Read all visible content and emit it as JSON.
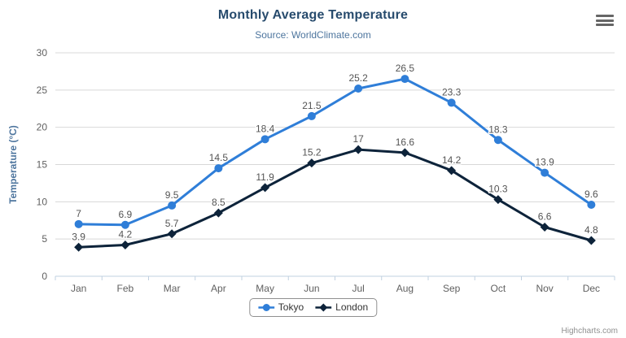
{
  "chart_data": {
    "type": "line",
    "title": "Monthly Average Temperature",
    "subtitle": "Source: WorldClimate.com",
    "categories": [
      "Jan",
      "Feb",
      "Mar",
      "Apr",
      "May",
      "Jun",
      "Jul",
      "Aug",
      "Sep",
      "Oct",
      "Nov",
      "Dec"
    ],
    "series": [
      {
        "name": "Tokyo",
        "color": "#2f7ed8",
        "marker": "circle",
        "values": [
          7,
          6.9,
          9.5,
          14.5,
          18.4,
          21.5,
          25.2,
          26.5,
          23.3,
          18.3,
          13.9,
          9.6
        ]
      },
      {
        "name": "London",
        "color": "#0d233a",
        "marker": "diamond",
        "values": [
          3.9,
          4.2,
          5.7,
          8.5,
          11.9,
          15.2,
          17,
          16.6,
          14.2,
          10.3,
          6.6,
          4.8
        ]
      }
    ],
    "xlabel": "",
    "ylabel": "Temperature (°C)",
    "ylim": [
      0,
      30
    ],
    "yticks": [
      0,
      5,
      10,
      15,
      20,
      25,
      30
    ],
    "grid": true,
    "data_labels": true,
    "legend_position": "bottom-center"
  },
  "colors": {
    "title": "#274b6d",
    "subtitle": "#4d759e",
    "axis_title": "#4d759e",
    "axis_labels": "#606060",
    "data_labels": "#545454",
    "grid_line": "#d8d8d8",
    "axis_line": "#c0d0e0",
    "legend_border": "#909090",
    "credits": "#909090",
    "hamburger": "#666666"
  },
  "credits": {
    "label": "Highcharts.com"
  },
  "export_menu": {
    "icon": "hamburger-icon"
  }
}
